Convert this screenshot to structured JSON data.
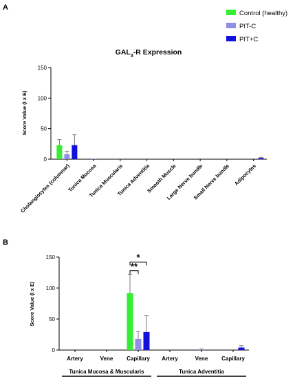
{
  "panel_a_letter": "A",
  "panel_b_letter": "B",
  "legend": [
    {
      "label": "Control (healthy)",
      "color": "#33ee33"
    },
    {
      "label": "PIT-C",
      "color": "#8f8fe8"
    },
    {
      "label": "PIT+C",
      "color": "#1111dd"
    }
  ],
  "chart_data": [
    {
      "type": "bar",
      "title": "GAL3-R Expression",
      "title_main": "GAL",
      "title_sub": "3",
      "title_tail": "-R Expression",
      "ylabel": "Score Value (I x E)",
      "ylim": [
        0,
        150
      ],
      "yticks": [
        0,
        50,
        100,
        150
      ],
      "grid": false,
      "legend_position": "top-right",
      "categories": [
        "Cholangiocytes (columnar)",
        "Tunica Mucosa",
        "Tunica Muscularis",
        "Tunica Adventitia",
        "Smooth Muscle",
        "Large Nerve bundle",
        "Small Nerve bundle",
        "Adipocytes"
      ],
      "series": [
        {
          "name": "Control (healthy)",
          "color": "#33ee33",
          "values": [
            23,
            0,
            0,
            0,
            0,
            0,
            0,
            0
          ],
          "errors": [
            9,
            0,
            0,
            0,
            0,
            0,
            0,
            0
          ]
        },
        {
          "name": "PIT-C",
          "color": "#8f8fe8",
          "values": [
            8,
            1,
            0,
            0,
            0,
            0,
            0,
            0
          ],
          "errors": [
            5,
            0,
            0,
            0,
            0,
            0,
            0,
            0
          ]
        },
        {
          "name": "PIT+C",
          "color": "#1111dd",
          "values": [
            23,
            0,
            0,
            0,
            0,
            0,
            0,
            2
          ],
          "errors": [
            17,
            0,
            0,
            0,
            0,
            0,
            0,
            1
          ]
        }
      ]
    },
    {
      "type": "bar",
      "ylabel": "Score Value (I x E)",
      "ylim": [
        0,
        150
      ],
      "yticks": [
        0,
        50,
        100,
        150
      ],
      "grid": false,
      "categories": [
        "Artery",
        "Vene",
        "Capillary",
        "Artery",
        "Vene",
        "Capillary"
      ],
      "groups": [
        "Tunica Mucosa & Muscularis",
        "Tunica Adventitia"
      ],
      "series": [
        {
          "name": "Control (healthy)",
          "color": "#33ee33",
          "values": [
            0,
            0,
            92,
            0,
            0,
            0
          ],
          "errors": [
            0,
            0,
            30,
            0,
            0,
            0
          ]
        },
        {
          "name": "PIT-C",
          "color": "#8f8fe8",
          "values": [
            0,
            0,
            18,
            0,
            1,
            0
          ],
          "errors": [
            0,
            0,
            12,
            0,
            1,
            0
          ]
        },
        {
          "name": "PIT+C",
          "color": "#1111dd",
          "values": [
            0,
            0,
            29,
            0,
            0,
            4
          ],
          "errors": [
            0,
            0,
            27,
            0,
            0,
            3
          ]
        }
      ],
      "annotations": [
        {
          "text": "**",
          "between": [
            "Control (healthy)",
            "PIT-C"
          ],
          "category": "Capillary"
        },
        {
          "text": "*",
          "between": [
            "Control (healthy)",
            "PIT+C"
          ],
          "category": "Capillary"
        }
      ]
    }
  ]
}
